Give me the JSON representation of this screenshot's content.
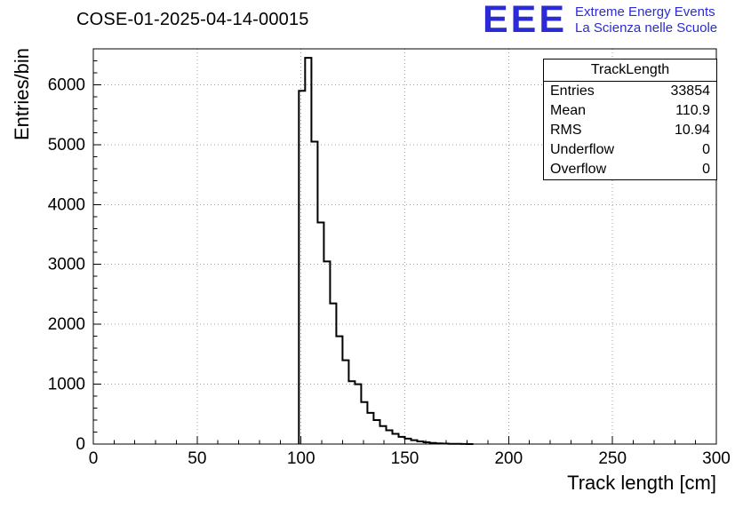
{
  "header": {
    "title": "COSE-01-2025-04-14-00015",
    "logo": {
      "text": "EEE",
      "line1": "Extreme Energy Events",
      "line2": "La Scienza nelle Scuole",
      "color": "#2b2bd5"
    }
  },
  "stats": {
    "title": "TrackLength",
    "rows": [
      {
        "label": "Entries",
        "value": "33854"
      },
      {
        "label": "Mean",
        "value": "110.9"
      },
      {
        "label": "RMS",
        "value": "10.94"
      },
      {
        "label": "Underflow",
        "value": "0"
      },
      {
        "label": "Overflow",
        "value": "0"
      }
    ]
  },
  "chart_data": {
    "type": "bar",
    "title": "COSE-01-2025-04-14-00015",
    "xlabel": "Track length [cm]",
    "ylabel": "Entries/bin",
    "xlim": [
      0,
      300
    ],
    "ylim": [
      0,
      6600
    ],
    "xticks": [
      0,
      50,
      100,
      150,
      200,
      250,
      300
    ],
    "yticks": [
      0,
      1000,
      2000,
      3000,
      4000,
      5000,
      6000
    ],
    "x_minor_step": 10,
    "y_minor_step": 200,
    "grid": true,
    "grid_color": "#a0a0a0",
    "line_color": "#000000",
    "bin_start": 99,
    "bin_width": 3,
    "counts": [
      5900,
      6450,
      5050,
      3700,
      3050,
      2350,
      1800,
      1400,
      1050,
      1000,
      700,
      520,
      400,
      300,
      230,
      170,
      120,
      90,
      65,
      45,
      30,
      20,
      12,
      8,
      5,
      3,
      1,
      0
    ]
  }
}
